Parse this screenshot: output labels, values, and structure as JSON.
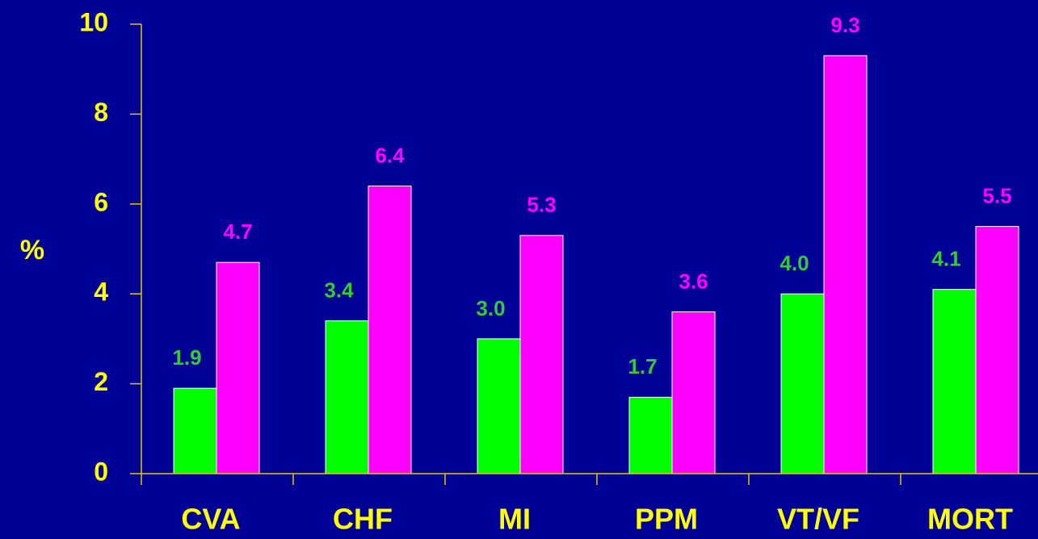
{
  "chart_data": {
    "type": "bar",
    "ylabel": "%",
    "categories": [
      "CVA",
      "CHF",
      "MI",
      "PPM",
      "VT/VF",
      "MORT"
    ],
    "series": [
      {
        "color": "#00ff00",
        "label_color": "#33cc33",
        "values": [
          1.9,
          3.4,
          3.0,
          1.7,
          4.0,
          4.1
        ],
        "value_labels": [
          "1.9",
          "3.4",
          "3.0",
          "1.7",
          "4.0",
          "4.1"
        ]
      },
      {
        "color": "#ff00ff",
        "label_color": "#ff00ff",
        "values": [
          4.7,
          6.4,
          5.3,
          3.6,
          9.3,
          5.5
        ],
        "value_labels": [
          "4.7",
          "6.4",
          "5.3",
          "3.6",
          "9.3",
          "5.5"
        ]
      }
    ],
    "ylim": [
      0,
      10
    ],
    "yticks": [
      0,
      2,
      4,
      6,
      8,
      10
    ],
    "axis_color": "#e6c800",
    "text_color": "#ffff00"
  }
}
